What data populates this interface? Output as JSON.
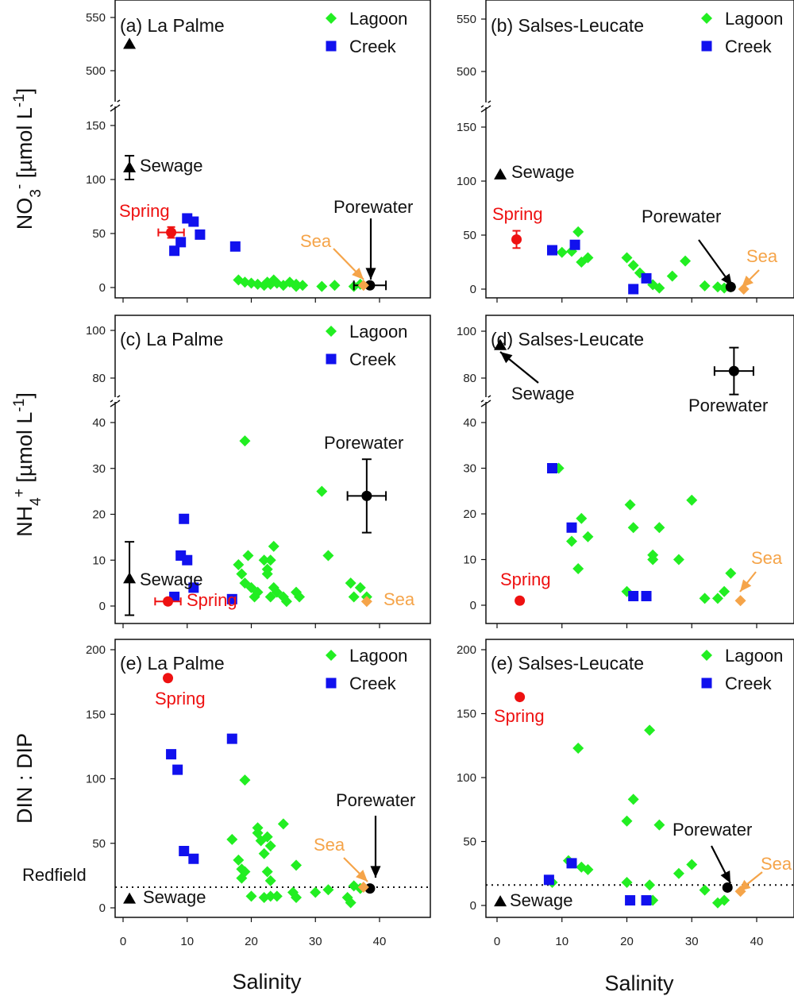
{
  "colors": {
    "lagoon": "#22ee22",
    "creek": "#1111ee",
    "spring": "#ee1111",
    "sea": "#f5a449",
    "black": "#000000"
  },
  "axis_labels": {
    "x_left": "Salinity",
    "x_right": "Salinity",
    "y_row1": "NO3- [µmol L-1]",
    "y_row2": "NH4+ [µmol L-1]",
    "y_row3": "DIN : DIP"
  },
  "chart_data": [
    {
      "type": "scatter",
      "title": "(a) La Palme",
      "xlabel": "Salinity",
      "ylabel": "NO3- [µmol L-1]",
      "xlim": [
        0,
        45
      ],
      "y_axis_break": {
        "lower": [
          0,
          160
        ],
        "upper": [
          490,
          560
        ]
      },
      "x_ticks": [
        0,
        10,
        20,
        30,
        40
      ],
      "y_ticks": [
        0,
        50,
        100,
        150,
        500,
        550
      ],
      "legend": [
        "Lagoon",
        "Creek"
      ],
      "legend_position": "top-right",
      "series": [
        {
          "name": "Lagoon",
          "marker": "diamond",
          "points": [
            [
              18,
              7
            ],
            [
              19,
              5
            ],
            [
              20,
              4
            ],
            [
              21,
              3
            ],
            [
              22,
              2
            ],
            [
              22.5,
              5
            ],
            [
              23,
              3
            ],
            [
              23.5,
              7
            ],
            [
              24,
              4
            ],
            [
              25,
              2
            ],
            [
              26,
              5
            ],
            [
              27,
              3
            ],
            [
              27,
              1
            ],
            [
              28,
              2
            ],
            [
              31,
              1
            ],
            [
              33,
              2
            ],
            [
              36,
              1
            ],
            [
              37,
              3
            ]
          ]
        },
        {
          "name": "Creek",
          "marker": "square",
          "points": [
            [
              8,
              34
            ],
            [
              9,
              42
            ],
            [
              10,
              64
            ],
            [
              11,
              61
            ],
            [
              12,
              49
            ],
            [
              17.5,
              38
            ]
          ]
        }
      ],
      "annotations": [
        {
          "label": "Spring",
          "x": 7.5,
          "y": 51,
          "xerr": 2,
          "yerr": 5
        },
        {
          "label": "Sewage",
          "x": 1,
          "y": 111,
          "yerr": 11
        },
        {
          "label": "Sewage outlier",
          "x": 1,
          "y": 525
        },
        {
          "label": "Porewater",
          "x": 38.5,
          "y": 2,
          "xerr": 2.5
        },
        {
          "label": "Sea",
          "x": 37.5,
          "y": 2
        }
      ]
    },
    {
      "type": "scatter",
      "title": "(b) Salses-Leucate",
      "xlabel": "Salinity",
      "ylabel": "NO3- [µmol L-1]",
      "xlim": [
        0,
        45
      ],
      "y_axis_break": {
        "lower": [
          0,
          160
        ],
        "upper": [
          490,
          560
        ]
      },
      "x_ticks": [
        0,
        10,
        20,
        30,
        40
      ],
      "y_ticks": [
        0,
        50,
        100,
        150,
        500,
        550
      ],
      "legend": [
        "Lagoon",
        "Creek"
      ],
      "legend_position": "top-right",
      "series": [
        {
          "name": "Lagoon",
          "marker": "diamond",
          "points": [
            [
              10,
              34
            ],
            [
              11.5,
              35
            ],
            [
              12.5,
              53
            ],
            [
              13,
              25
            ],
            [
              14,
              29
            ],
            [
              20,
              29
            ],
            [
              21,
              22
            ],
            [
              22,
              15
            ],
            [
              24,
              4
            ],
            [
              25,
              1
            ],
            [
              27,
              12
            ],
            [
              29,
              26
            ],
            [
              32,
              3
            ],
            [
              34,
              2
            ],
            [
              35,
              1
            ],
            [
              36,
              2
            ]
          ]
        },
        {
          "name": "Creek",
          "marker": "square",
          "points": [
            [
              8.5,
              36
            ],
            [
              12,
              41
            ],
            [
              21,
              0
            ],
            [
              23,
              10
            ]
          ]
        }
      ],
      "annotations": [
        {
          "label": "Spring",
          "x": 3,
          "y": 46,
          "yerr": 8
        },
        {
          "label": "Sewage",
          "x": 0.5,
          "y": 106
        },
        {
          "label": "Porewater",
          "x": 36,
          "y": 2
        },
        {
          "label": "Sea",
          "x": 38,
          "y": 0
        }
      ]
    },
    {
      "type": "scatter",
      "title": "(c) La Palme",
      "xlabel": "Salinity",
      "ylabel": "NH4+ [µmol L-1]",
      "xlim": [
        0,
        45
      ],
      "y_axis_break": {
        "lower": [
          0,
          44
        ],
        "upper": [
          74,
          102
        ]
      },
      "x_ticks": [
        0,
        10,
        20,
        30,
        40
      ],
      "y_ticks": [
        0,
        10,
        20,
        30,
        40,
        80,
        100
      ],
      "legend": [
        "Lagoon",
        "Creek"
      ],
      "legend_position": "top-right",
      "series": [
        {
          "name": "Lagoon",
          "marker": "diamond",
          "points": [
            [
              18,
              9
            ],
            [
              18.5,
              7
            ],
            [
              19,
              5
            ],
            [
              19.5,
              11
            ],
            [
              19,
              36
            ],
            [
              20,
              4
            ],
            [
              20.5,
              2
            ],
            [
              21,
              3
            ],
            [
              22,
              10
            ],
            [
              22.5,
              7
            ],
            [
              22.5,
              8
            ],
            [
              23,
              2
            ],
            [
              23,
              10
            ],
            [
              23.5,
              4
            ],
            [
              23.5,
              13
            ],
            [
              24,
              3
            ],
            [
              25,
              2
            ],
            [
              25.5,
              1
            ],
            [
              27,
              3
            ],
            [
              27.5,
              2
            ],
            [
              31,
              25
            ],
            [
              32,
              11
            ],
            [
              35.5,
              5
            ],
            [
              36,
              2
            ],
            [
              37,
              4
            ],
            [
              38,
              2
            ]
          ]
        },
        {
          "name": "Creek",
          "marker": "square",
          "points": [
            [
              8,
              2
            ],
            [
              9,
              11
            ],
            [
              9.5,
              19
            ],
            [
              10,
              10
            ],
            [
              11,
              4
            ],
            [
              17,
              1.5
            ]
          ]
        }
      ],
      "annotations": [
        {
          "label": "Spring",
          "x": 7,
          "y": 1,
          "xerr": 2
        },
        {
          "label": "Sewage",
          "x": 1,
          "y": 6,
          "yerr": 8
        },
        {
          "label": "Porewater",
          "x": 38,
          "y": 24,
          "xerr": 3,
          "yerr": 8
        },
        {
          "label": "Sea",
          "x": 38,
          "y": 1
        }
      ]
    },
    {
      "type": "scatter",
      "title": "(d) Salses-Leucate",
      "xlabel": "Salinity",
      "ylabel": "NH4+ [µmol L-1]",
      "xlim": [
        0,
        45
      ],
      "y_axis_break": {
        "lower": [
          0,
          44
        ],
        "upper": [
          74,
          102
        ]
      },
      "x_ticks": [
        0,
        10,
        20,
        30,
        40
      ],
      "y_ticks": [
        0,
        10,
        20,
        30,
        40,
        80,
        100
      ],
      "legend": [],
      "legend_position": "none",
      "series": [
        {
          "name": "Lagoon",
          "marker": "diamond",
          "points": [
            [
              9.5,
              30
            ],
            [
              11.5,
              14
            ],
            [
              12.5,
              8
            ],
            [
              13,
              19
            ],
            [
              14,
              15
            ],
            [
              20.5,
              22
            ],
            [
              21,
              17
            ],
            [
              20,
              3
            ],
            [
              24,
              11
            ],
            [
              24,
              10
            ],
            [
              25,
              17
            ],
            [
              28,
              10
            ],
            [
              30,
              23
            ],
            [
              32,
              1.5
            ],
            [
              34,
              1.5
            ],
            [
              35,
              3
            ],
            [
              36,
              7
            ]
          ]
        },
        {
          "name": "Creek",
          "marker": "square",
          "points": [
            [
              8.5,
              30
            ],
            [
              11.5,
              17
            ],
            [
              21,
              2
            ],
            [
              23,
              2
            ]
          ]
        }
      ],
      "annotations": [
        {
          "label": "Spring",
          "x": 3.5,
          "y": 1
        },
        {
          "label": "Sewage",
          "x": 0.5,
          "y": 94
        },
        {
          "label": "Porewater",
          "x": 36.5,
          "y": 83,
          "xerr": 3,
          "yerr": 10
        },
        {
          "label": "Sea",
          "x": 37.5,
          "y": 1
        }
      ]
    },
    {
      "type": "scatter",
      "title": "(e) La Palme",
      "xlabel": "Salinity",
      "ylabel": "DIN : DIP",
      "xlim": [
        0,
        45
      ],
      "ylim": [
        -5,
        205
      ],
      "x_ticks": [
        0,
        10,
        20,
        30,
        40
      ],
      "y_ticks": [
        0,
        50,
        100,
        150,
        200
      ],
      "legend": [
        "Lagoon",
        "Creek"
      ],
      "legend_position": "top-right",
      "reference_line": {
        "label": "Redfield",
        "y": 16
      },
      "series": [
        {
          "name": "Lagoon",
          "marker": "diamond",
          "points": [
            [
              17,
              53
            ],
            [
              18,
              37
            ],
            [
              18.5,
              30
            ],
            [
              18.5,
              23
            ],
            [
              19,
              28
            ],
            [
              19,
              99
            ],
            [
              20,
              9
            ],
            [
              21,
              62
            ],
            [
              21,
              58
            ],
            [
              21.5,
              52
            ],
            [
              22,
              8
            ],
            [
              22,
              42
            ],
            [
              22.5,
              55
            ],
            [
              22.5,
              28
            ],
            [
              23,
              48
            ],
            [
              23,
              21
            ],
            [
              23,
              9
            ],
            [
              24,
              9
            ],
            [
              25,
              65
            ],
            [
              26.5,
              12
            ],
            [
              27,
              33
            ],
            [
              27,
              8
            ],
            [
              30,
              12
            ],
            [
              32,
              14
            ],
            [
              35,
              8
            ],
            [
              35.5,
              4
            ],
            [
              36,
              17
            ],
            [
              37,
              15
            ]
          ]
        },
        {
          "name": "Creek",
          "marker": "square",
          "points": [
            [
              7.5,
              119
            ],
            [
              8.5,
              107
            ],
            [
              9.5,
              44
            ],
            [
              11,
              38
            ],
            [
              17,
              131
            ]
          ]
        }
      ],
      "annotations": [
        {
          "label": "Spring",
          "x": 7,
          "y": 178
        },
        {
          "label": "Sewage",
          "x": 1,
          "y": 7
        },
        {
          "label": "Porewater",
          "x": 38.5,
          "y": 15
        },
        {
          "label": "Sea",
          "x": 37.5,
          "y": 16
        }
      ]
    },
    {
      "type": "scatter",
      "title": "(e) Salses-Leucate",
      "xlabel": "Salinity",
      "ylabel": "DIN : DIP",
      "xlim": [
        0,
        45
      ],
      "ylim": [
        -5,
        205
      ],
      "x_ticks": [
        0,
        10,
        20,
        30,
        40
      ],
      "y_ticks": [
        0,
        50,
        100,
        150,
        200
      ],
      "legend": [
        "Lagoon",
        "Creek"
      ],
      "legend_position": "top-right",
      "reference_line": {
        "label": "",
        "y": 16
      },
      "series": [
        {
          "name": "Lagoon",
          "marker": "diamond",
          "points": [
            [
              8.5,
              18
            ],
            [
              11,
              35
            ],
            [
              12.5,
              123
            ],
            [
              13,
              30
            ],
            [
              14,
              28
            ],
            [
              20,
              18
            ],
            [
              20,
              66
            ],
            [
              21,
              83
            ],
            [
              23.5,
              137
            ],
            [
              23.5,
              16
            ],
            [
              24,
              4
            ],
            [
              25,
              63
            ],
            [
              28,
              25
            ],
            [
              30,
              32
            ],
            [
              32,
              12
            ],
            [
              34,
              2
            ],
            [
              35,
              4
            ]
          ]
        },
        {
          "name": "Creek",
          "marker": "square",
          "points": [
            [
              8,
              20
            ],
            [
              11.5,
              33
            ],
            [
              20.5,
              4
            ],
            [
              23,
              4
            ]
          ]
        }
      ],
      "annotations": [
        {
          "label": "Spring",
          "x": 3.5,
          "y": 163
        },
        {
          "label": "Sewage",
          "x": 0.5,
          "y": 3
        },
        {
          "label": "Porewater",
          "x": 35.5,
          "y": 14
        },
        {
          "label": "Sea",
          "x": 37.5,
          "y": 11
        }
      ]
    }
  ]
}
